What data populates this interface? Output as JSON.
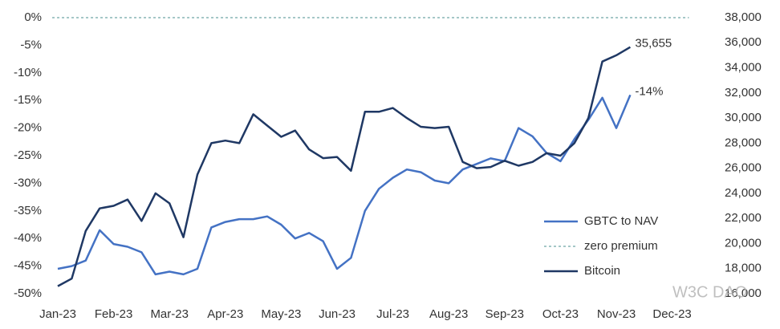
{
  "chart_data": {
    "type": "line",
    "x": [
      0,
      0.25,
      0.5,
      0.75,
      1,
      1.25,
      1.5,
      1.75,
      2,
      2.25,
      2.5,
      2.75,
      3,
      3.25,
      3.5,
      3.75,
      4,
      4.25,
      4.5,
      4.75,
      5,
      5.25,
      5.5,
      5.75,
      6,
      6.25,
      6.5,
      6.75,
      7,
      7.25,
      7.5,
      7.75,
      8,
      8.25,
      8.5,
      8.75,
      9,
      9.25,
      9.5,
      9.75,
      10,
      10.25
    ],
    "xlim": [
      -0.1,
      11.3
    ],
    "xticks": [
      {
        "value": 0,
        "label": "Jan-23"
      },
      {
        "value": 1,
        "label": "Feb-23"
      },
      {
        "value": 2,
        "label": "Mar-23"
      },
      {
        "value": 3,
        "label": "Apr-23"
      },
      {
        "value": 4,
        "label": "May-23"
      },
      {
        "value": 5,
        "label": "Jun-23"
      },
      {
        "value": 6,
        "label": "Jul-23"
      },
      {
        "value": 7,
        "label": "Aug-23"
      },
      {
        "value": 8,
        "label": "Sep-23"
      },
      {
        "value": 9,
        "label": "Oct-23"
      },
      {
        "value": 10,
        "label": "Nov-23"
      },
      {
        "value": 11,
        "label": "Dec-23"
      }
    ],
    "ylim": [
      -50,
      0
    ],
    "yticks": [
      {
        "value": 0,
        "label": "0%"
      },
      {
        "value": -5,
        "label": "-5%"
      },
      {
        "value": -10,
        "label": "-10%"
      },
      {
        "value": -15,
        "label": "-15%"
      },
      {
        "value": -20,
        "label": "-20%"
      },
      {
        "value": -25,
        "label": "-25%"
      },
      {
        "value": -30,
        "label": "-30%"
      },
      {
        "value": -35,
        "label": "-35%"
      },
      {
        "value": -40,
        "label": "-40%"
      },
      {
        "value": -45,
        "label": "-45%"
      },
      {
        "value": -50,
        "label": "-50%"
      }
    ],
    "y2lim": [
      16000,
      38000
    ],
    "y2ticks": [
      {
        "value": 16000,
        "label": "16,000"
      },
      {
        "value": 18000,
        "label": "18,000"
      },
      {
        "value": 20000,
        "label": "20,000"
      },
      {
        "value": 22000,
        "label": "22,000"
      },
      {
        "value": 24000,
        "label": "24,000"
      },
      {
        "value": 26000,
        "label": "26,000"
      },
      {
        "value": 28000,
        "label": "28,000"
      },
      {
        "value": 30000,
        "label": "30,000"
      },
      {
        "value": 32000,
        "label": "32,000"
      },
      {
        "value": 34000,
        "label": "34,000"
      },
      {
        "value": 36000,
        "label": "36,000"
      },
      {
        "value": 38000,
        "label": "38,000"
      }
    ],
    "series": [
      {
        "name": "GBTC to NAV",
        "color": "#4472c4",
        "values": [
          -45.5,
          -45,
          -44,
          -38.5,
          -41,
          -41.5,
          -42.5,
          -46.5,
          -46,
          -46.5,
          -45.5,
          -38,
          -37,
          -36.5,
          -36.5,
          -36,
          -37.5,
          -40,
          -39,
          -40.5,
          -45.5,
          -43.5,
          -35,
          -31,
          -29,
          -27.5,
          -28,
          -29.5,
          -30,
          -27.5,
          -26.5,
          -25.5,
          -26,
          -20,
          -21.5,
          -24.5,
          -26,
          -22,
          -18.5,
          -14.5,
          -20,
          -14
        ],
        "value_labels": [
          null,
          null,
          null,
          null,
          null,
          null,
          null,
          null,
          null,
          null,
          null,
          null,
          null,
          null,
          null,
          null,
          null,
          null,
          null,
          null,
          null,
          null,
          null,
          null,
          null,
          null,
          null,
          null,
          null,
          null,
          null,
          null,
          null,
          null,
          null,
          null,
          null,
          null,
          null,
          null,
          null,
          "-14%"
        ]
      },
      {
        "name": "Bitcoin",
        "color": "#1f3864",
        "axis": "y2",
        "values": [
          16600,
          17200,
          21000,
          22800,
          23000,
          23500,
          21800,
          24000,
          23200,
          20500,
          25500,
          28000,
          28200,
          28000,
          30300,
          29400,
          28500,
          29000,
          27500,
          26800,
          26900,
          25800,
          30500,
          30500,
          30800,
          30000,
          29300,
          29200,
          29300,
          26500,
          26000,
          26100,
          26600,
          26200,
          26500,
          27200,
          27000,
          28000,
          30000,
          34500,
          35000,
          35655
        ],
        "value_labels": [
          null,
          null,
          null,
          null,
          null,
          null,
          null,
          null,
          null,
          null,
          null,
          null,
          null,
          null,
          null,
          null,
          null,
          null,
          null,
          null,
          null,
          null,
          null,
          null,
          null,
          null,
          null,
          null,
          null,
          null,
          null,
          null,
          null,
          null,
          null,
          null,
          null,
          null,
          null,
          null,
          null,
          "35,655"
        ]
      }
    ],
    "reference_lines": [
      {
        "name": "zero premium",
        "value": 0,
        "color": "#4a8f8f"
      }
    ],
    "watermark": "W3C DAO"
  }
}
